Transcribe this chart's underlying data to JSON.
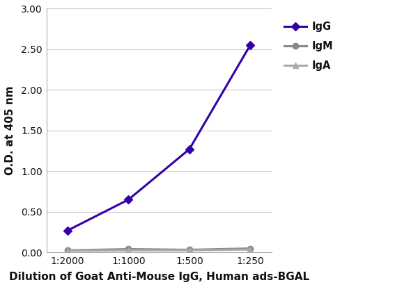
{
  "x_labels": [
    "1:2000",
    "1:1000",
    "1:500",
    "1:250"
  ],
  "x_positions": [
    0,
    1,
    2,
    3
  ],
  "IgG_values": [
    0.27,
    0.65,
    1.27,
    2.55
  ],
  "IgM_values": [
    0.025,
    0.04,
    0.032,
    0.048
  ],
  "IgA_values": [
    0.018,
    0.025,
    0.026,
    0.035
  ],
  "IgG_color": "#3300aa",
  "IgM_color": "#888888",
  "IgA_color": "#aaaaaa",
  "ylim": [
    0,
    3.0
  ],
  "yticks": [
    0.0,
    0.5,
    1.0,
    1.5,
    2.0,
    2.5,
    3.0
  ],
  "ylabel": "O.D. at 405 nm",
  "xlabel": "Dilution of Goat Anti-Mouse IgG, Human ads-BGAL",
  "legend_labels": [
    "IgG",
    "IgM",
    "IgA"
  ],
  "background_color": "#ffffff",
  "linewidth": 2.2,
  "markersize": 6,
  "tick_fontsize": 10,
  "label_fontsize": 11
}
